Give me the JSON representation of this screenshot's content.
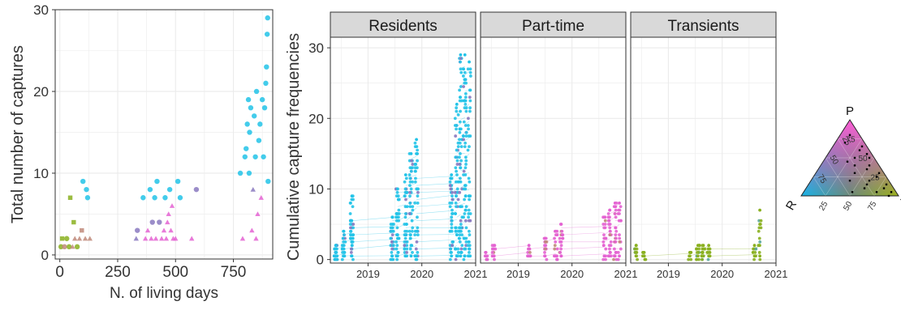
{
  "colors": {
    "resident": "#22c3e8",
    "part_time": "#e463d2",
    "transient": "#8ab020",
    "mixed_rp": "#8a79c0",
    "mixed_rt": "#5aa7a0",
    "mixed_pt": "#c08a7a",
    "strip_fill": "#d9d9d9",
    "grid": "#ebebeb"
  },
  "chart_data": [
    {
      "type": "scatter",
      "xlabel": "N. of living days",
      "ylabel": "Total number of captures",
      "xlim": [
        -20,
        920
      ],
      "ylim": [
        -0.5,
        30
      ],
      "xticks": [
        0,
        250,
        500,
        750
      ],
      "yticks": [
        0,
        10,
        20,
        30
      ],
      "grid": true,
      "points": [
        {
          "x": 5,
          "y": 1,
          "c": "transient",
          "s": "circle"
        },
        {
          "x": 10,
          "y": 2,
          "c": "transient",
          "s": "square"
        },
        {
          "x": 20,
          "y": 1,
          "c": "mixed_pt",
          "s": "circle"
        },
        {
          "x": 30,
          "y": 2,
          "c": "transient",
          "s": "circle"
        },
        {
          "x": 40,
          "y": 1,
          "c": "transient",
          "s": "circle"
        },
        {
          "x": 45,
          "y": 7,
          "c": "transient",
          "s": "square"
        },
        {
          "x": 55,
          "y": 1,
          "c": "mixed_pt",
          "s": "triangle"
        },
        {
          "x": 60,
          "y": 4,
          "c": "transient",
          "s": "square"
        },
        {
          "x": 65,
          "y": 2,
          "c": "mixed_pt",
          "s": "triangle"
        },
        {
          "x": 75,
          "y": 1,
          "c": "transient",
          "s": "circle"
        },
        {
          "x": 85,
          "y": 2,
          "c": "mixed_pt",
          "s": "triangle"
        },
        {
          "x": 95,
          "y": 3,
          "c": "mixed_pt",
          "s": "square"
        },
        {
          "x": 100,
          "y": 9,
          "c": "resident",
          "s": "circle"
        },
        {
          "x": 110,
          "y": 2,
          "c": "mixed_pt",
          "s": "triangle"
        },
        {
          "x": 115,
          "y": 8,
          "c": "resident",
          "s": "circle"
        },
        {
          "x": 120,
          "y": 7,
          "c": "resident",
          "s": "circle"
        },
        {
          "x": 130,
          "y": 2,
          "c": "mixed_pt",
          "s": "triangle"
        },
        {
          "x": 330,
          "y": 2,
          "c": "mixed_rp",
          "s": "triangle"
        },
        {
          "x": 335,
          "y": 3,
          "c": "mixed_rp",
          "s": "circle"
        },
        {
          "x": 360,
          "y": 7,
          "c": "resident",
          "s": "circle"
        },
        {
          "x": 370,
          "y": 2,
          "c": "part_time",
          "s": "triangle"
        },
        {
          "x": 380,
          "y": 3,
          "c": "part_time",
          "s": "triangle"
        },
        {
          "x": 390,
          "y": 8,
          "c": "resident",
          "s": "circle"
        },
        {
          "x": 395,
          "y": 2,
          "c": "part_time",
          "s": "triangle"
        },
        {
          "x": 400,
          "y": 4,
          "c": "mixed_rp",
          "s": "circle"
        },
        {
          "x": 410,
          "y": 7,
          "c": "resident",
          "s": "circle"
        },
        {
          "x": 415,
          "y": 2,
          "c": "part_time",
          "s": "triangle"
        },
        {
          "x": 420,
          "y": 9,
          "c": "resident",
          "s": "circle"
        },
        {
          "x": 430,
          "y": 4,
          "c": "mixed_rp",
          "s": "circle"
        },
        {
          "x": 440,
          "y": 2,
          "c": "part_time",
          "s": "triangle"
        },
        {
          "x": 450,
          "y": 3,
          "c": "part_time",
          "s": "triangle"
        },
        {
          "x": 455,
          "y": 7,
          "c": "resident",
          "s": "circle"
        },
        {
          "x": 460,
          "y": 2,
          "c": "part_time",
          "s": "triangle"
        },
        {
          "x": 465,
          "y": 4,
          "c": "part_time",
          "s": "triangle"
        },
        {
          "x": 470,
          "y": 5,
          "c": "part_time",
          "s": "triangle"
        },
        {
          "x": 475,
          "y": 8,
          "c": "resident",
          "s": "circle"
        },
        {
          "x": 480,
          "y": 3,
          "c": "part_time",
          "s": "triangle"
        },
        {
          "x": 485,
          "y": 6,
          "c": "part_time",
          "s": "triangle"
        },
        {
          "x": 490,
          "y": 2,
          "c": "part_time",
          "s": "triangle"
        },
        {
          "x": 500,
          "y": 2,
          "c": "part_time",
          "s": "triangle"
        },
        {
          "x": 510,
          "y": 9,
          "c": "resident",
          "s": "circle"
        },
        {
          "x": 520,
          "y": 7,
          "c": "resident",
          "s": "circle"
        },
        {
          "x": 570,
          "y": 2,
          "c": "part_time",
          "s": "triangle"
        },
        {
          "x": 590,
          "y": 8,
          "c": "mixed_rp",
          "s": "circle"
        },
        {
          "x": 780,
          "y": 10,
          "c": "resident",
          "s": "circle"
        },
        {
          "x": 790,
          "y": 2,
          "c": "part_time",
          "s": "triangle"
        },
        {
          "x": 800,
          "y": 12,
          "c": "resident",
          "s": "circle"
        },
        {
          "x": 805,
          "y": 13,
          "c": "resident",
          "s": "circle"
        },
        {
          "x": 810,
          "y": 16,
          "c": "resident",
          "s": "circle"
        },
        {
          "x": 815,
          "y": 19,
          "c": "resident",
          "s": "circle"
        },
        {
          "x": 818,
          "y": 10,
          "c": "resident",
          "s": "circle"
        },
        {
          "x": 820,
          "y": 15,
          "c": "resident",
          "s": "circle"
        },
        {
          "x": 825,
          "y": 18,
          "c": "resident",
          "s": "circle"
        },
        {
          "x": 830,
          "y": 3,
          "c": "part_time",
          "s": "triangle"
        },
        {
          "x": 835,
          "y": 8,
          "c": "mixed_rp",
          "s": "triangle"
        },
        {
          "x": 840,
          "y": 17,
          "c": "resident",
          "s": "circle"
        },
        {
          "x": 845,
          "y": 12,
          "c": "resident",
          "s": "circle"
        },
        {
          "x": 848,
          "y": 2,
          "c": "part_time",
          "s": "triangle"
        },
        {
          "x": 850,
          "y": 20,
          "c": "resident",
          "s": "circle"
        },
        {
          "x": 855,
          "y": 5,
          "c": "part_time",
          "s": "triangle"
        },
        {
          "x": 860,
          "y": 14,
          "c": "resident",
          "s": "circle"
        },
        {
          "x": 865,
          "y": 16,
          "c": "resident",
          "s": "circle"
        },
        {
          "x": 870,
          "y": 7,
          "c": "part_time",
          "s": "triangle"
        },
        {
          "x": 875,
          "y": 19,
          "c": "resident",
          "s": "circle"
        },
        {
          "x": 880,
          "y": 12,
          "c": "resident",
          "s": "circle"
        },
        {
          "x": 885,
          "y": 18,
          "c": "resident",
          "s": "circle"
        },
        {
          "x": 890,
          "y": 21,
          "c": "resident",
          "s": "circle"
        },
        {
          "x": 893,
          "y": 23,
          "c": "resident",
          "s": "circle"
        },
        {
          "x": 896,
          "y": 27,
          "c": "resident",
          "s": "circle"
        },
        {
          "x": 898,
          "y": 29,
          "c": "resident",
          "s": "circle"
        },
        {
          "x": 900,
          "y": 9,
          "c": "resident",
          "s": "circle"
        }
      ]
    },
    {
      "type": "scatter",
      "ylabel": "Cumulative capture frequencies",
      "facets": [
        "Residents",
        "Part-time",
        "Transients"
      ],
      "xlim": [
        2018.3,
        2021.0
      ],
      "ylim": [
        -0.5,
        31.5
      ],
      "xticks": [
        2019,
        2020,
        2021
      ],
      "yticks": [
        0,
        10,
        20,
        30
      ],
      "grid": true,
      "panels": [
        {
          "facet": "Residents",
          "c": "resident",
          "max_stacks": [
            {
              "x": 2018.4,
              "top": 2,
              "n": 30
            },
            {
              "x": 2018.55,
              "top": 4,
              "n": 25
            },
            {
              "x": 2018.7,
              "top": 9,
              "n": 40
            },
            {
              "x": 2019.45,
              "top": 6,
              "n": 30
            },
            {
              "x": 2019.55,
              "top": 10,
              "n": 35
            },
            {
              "x": 2019.7,
              "top": 12,
              "n": 40
            },
            {
              "x": 2019.8,
              "top": 15,
              "n": 40
            },
            {
              "x": 2019.9,
              "top": 17,
              "n": 40
            },
            {
              "x": 2020.55,
              "top": 12,
              "n": 40
            },
            {
              "x": 2020.65,
              "top": 22,
              "n": 50
            },
            {
              "x": 2020.72,
              "top": 29,
              "n": 60
            },
            {
              "x": 2020.8,
              "top": 29,
              "n": 60
            },
            {
              "x": 2020.88,
              "top": 28,
              "n": 40
            }
          ]
        },
        {
          "facet": "Part-time",
          "c": "part_time",
          "max_stacks": [
            {
              "x": 2018.4,
              "top": 1,
              "n": 10
            },
            {
              "x": 2018.55,
              "top": 2,
              "n": 15
            },
            {
              "x": 2019.2,
              "top": 2,
              "n": 10
            },
            {
              "x": 2019.5,
              "top": 3,
              "n": 15
            },
            {
              "x": 2019.7,
              "top": 4,
              "n": 18
            },
            {
              "x": 2019.8,
              "top": 5,
              "n": 18
            },
            {
              "x": 2020.6,
              "top": 6,
              "n": 20
            },
            {
              "x": 2020.7,
              "top": 7,
              "n": 25
            },
            {
              "x": 2020.8,
              "top": 8,
              "n": 25
            },
            {
              "x": 2020.88,
              "top": 8,
              "n": 15
            }
          ]
        },
        {
          "facet": "Transients",
          "c": "transient",
          "max_stacks": [
            {
              "x": 2018.4,
              "top": 2,
              "n": 12
            },
            {
              "x": 2018.55,
              "top": 1,
              "n": 10
            },
            {
              "x": 2019.4,
              "top": 1,
              "n": 6
            },
            {
              "x": 2019.55,
              "top": 2,
              "n": 15
            },
            {
              "x": 2019.65,
              "top": 2,
              "n": 15
            },
            {
              "x": 2019.75,
              "top": 2,
              "n": 12
            },
            {
              "x": 2020.6,
              "top": 2,
              "n": 10
            },
            {
              "x": 2020.7,
              "top": 7,
              "n": 14
            }
          ]
        }
      ]
    },
    {
      "type": "ternary",
      "vertices": [
        "P",
        "R",
        "A"
      ],
      "ticks": [
        25,
        50,
        75
      ],
      "points": [
        [
          0.8,
          0.1,
          0.1
        ],
        [
          0.7,
          0.2,
          0.1
        ],
        [
          0.6,
          0.1,
          0.3
        ],
        [
          0.5,
          0.2,
          0.3
        ],
        [
          0.55,
          0.05,
          0.4
        ],
        [
          0.4,
          0.1,
          0.5
        ],
        [
          0.35,
          0.15,
          0.5
        ],
        [
          0.3,
          0.05,
          0.65
        ],
        [
          0.25,
          0.1,
          0.65
        ],
        [
          0.2,
          0.2,
          0.6
        ],
        [
          0.15,
          0.05,
          0.8
        ],
        [
          0.1,
          0.1,
          0.8
        ],
        [
          0.05,
          0.05,
          0.9
        ],
        [
          0.45,
          0.3,
          0.25
        ],
        [
          0.3,
          0.3,
          0.4
        ],
        [
          0.2,
          0.4,
          0.4
        ],
        [
          0.1,
          0.3,
          0.6
        ],
        [
          0.05,
          0.2,
          0.75
        ],
        [
          0.65,
          0.05,
          0.3
        ],
        [
          0.5,
          0.05,
          0.45
        ],
        [
          0.4,
          0.25,
          0.35
        ],
        [
          0.15,
          0.25,
          0.6
        ],
        [
          0.05,
          0.45,
          0.5
        ],
        [
          0.0,
          0.1,
          0.9
        ]
      ]
    }
  ]
}
